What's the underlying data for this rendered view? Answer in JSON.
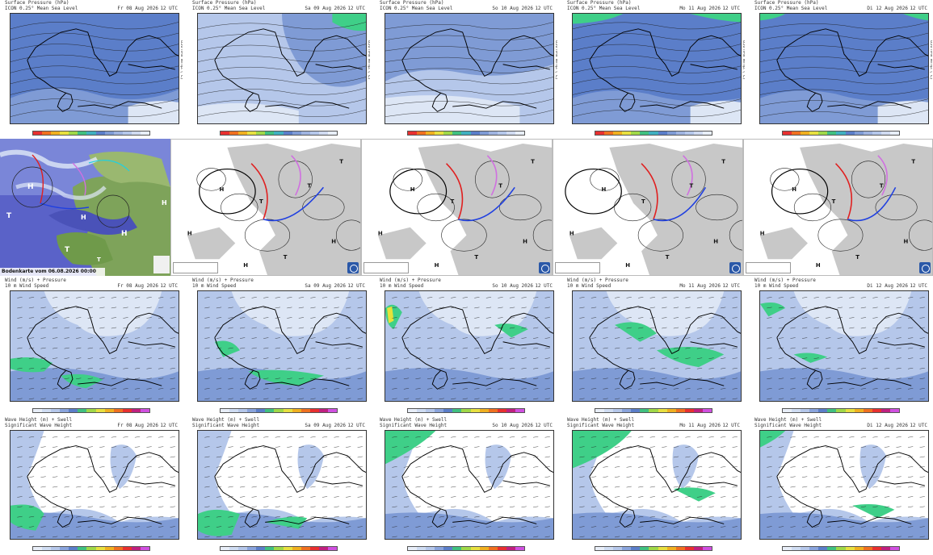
{
  "satellite_caption": "Bodenkarte vom 06.08.2026 00:00 UTC",
  "row1": {
    "title_line1": "Surface Pressure (hPa)",
    "title_line2": "ICON 0.25° Mean Sea Level",
    "panels": [
      {
        "date": "Fr 08 Aug 2026",
        "utc": "12 UTC"
      },
      {
        "date": "Sa 09 Aug 2026",
        "utc": "12 UTC"
      },
      {
        "date": "So 10 Aug 2026",
        "utc": "12 UTC"
      },
      {
        "date": "Mo 11 Aug 2026",
        "utc": "12 UTC"
      },
      {
        "date": "Di 12 Aug 2026",
        "utc": "12 UTC"
      }
    ],
    "side_label": "850 hPa Temp. (°C)"
  },
  "row3": {
    "title_line1": "Wind (m/s) + Pressure",
    "title_line2": "10 m Wind Speed",
    "panels": [
      {
        "date": "Fr 08 Aug 2026",
        "utc": "12 UTC"
      },
      {
        "date": "Sa 09 Aug 2026",
        "utc": "12 UTC"
      },
      {
        "date": "So 10 Aug 2026",
        "utc": "12 UTC"
      },
      {
        "date": "Mo 11 Aug 2026",
        "utc": "12 UTC"
      },
      {
        "date": "Di 12 Aug 2026",
        "utc": "12 UTC"
      }
    ]
  },
  "row4": {
    "title_line1": "Wave Height (m) + Swell",
    "title_line2": "Significant Wave Height",
    "panels": [
      {
        "date": "Fr 08 Aug 2026",
        "utc": "12 UTC"
      },
      {
        "date": "Sa 09 Aug 2026",
        "utc": "12 UTC"
      },
      {
        "date": "So 10 Aug 2026",
        "utc": "12 UTC"
      },
      {
        "date": "Mo 11 Aug 2026",
        "utc": "12 UTC"
      },
      {
        "date": "Di 12 Aug 2026",
        "utc": "12 UTC"
      }
    ]
  },
  "colors": {
    "sea_dark": "#5b7ec9",
    "sea_mid": "#7f9bd5",
    "sea_light": "#b5c7ea",
    "sea_pale": "#dde6f5",
    "green": "#3fcf88",
    "yellow": "#e5e23a",
    "land_grey": "#c8c8c8",
    "front_red": "#e02020",
    "front_blue": "#2040e0",
    "front_violet": "#d070e0"
  },
  "colorbar_pressure": [
    "#e83030",
    "#f07020",
    "#f0b020",
    "#e8e040",
    "#a0d848",
    "#40c080",
    "#40b0c0",
    "#5b7ec9",
    "#7f9bd5",
    "#9fb4e0",
    "#b5c7ea",
    "#d0daf0",
    "#e8eef8"
  ],
  "colorbar_wind": [
    "#e8eef8",
    "#cfdcf2",
    "#b5c7ea",
    "#8aa4dc",
    "#5b7ec9",
    "#40c080",
    "#a0d848",
    "#e8e040",
    "#f0b020",
    "#f07020",
    "#e83030",
    "#c02080",
    "#d050e0"
  ]
}
